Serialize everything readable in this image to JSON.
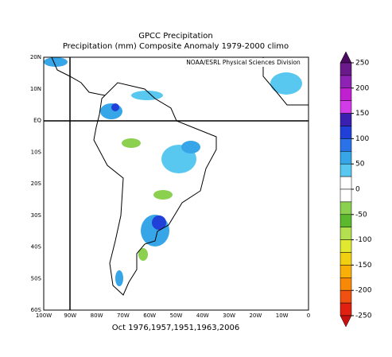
{
  "title": "GPCC Precipitation",
  "subtitle": "Precipitation (mm) Composite Anomaly 1979-2000 climo",
  "credit": "NOAA/ESRL Physical Sciences Division",
  "footer": "Oct 1976,1957,1951,1963,2006",
  "lat_labels": [
    "20N",
    "10N",
    "EQ",
    "10S",
    "20S",
    "30S",
    "40S",
    "50S",
    "60S"
  ],
  "lon_labels": [
    "100W",
    "90W",
    "80W",
    "70W",
    "60W",
    "50W",
    "40W",
    "30W",
    "20W",
    "10W",
    "0"
  ],
  "colorbar": {
    "ticks": [
      250,
      200,
      150,
      100,
      50,
      0,
      -50,
      -100,
      -150,
      -200,
      -250
    ],
    "colors": [
      "#4b0a5f",
      "#6a1a8a",
      "#8e22b4",
      "#c020d0",
      "#d23ce8",
      "#3a1fb0",
      "#2040d8",
      "#2a72e8",
      "#36a6e8",
      "#58c8f0",
      "#ffffff",
      "#ffffff",
      "#8cd050",
      "#5cb82c",
      "#b4e050",
      "#e0e830",
      "#f0d010",
      "#f8b008",
      "#f88808",
      "#f05010",
      "#e02010",
      "#c81010"
    ]
  }
}
